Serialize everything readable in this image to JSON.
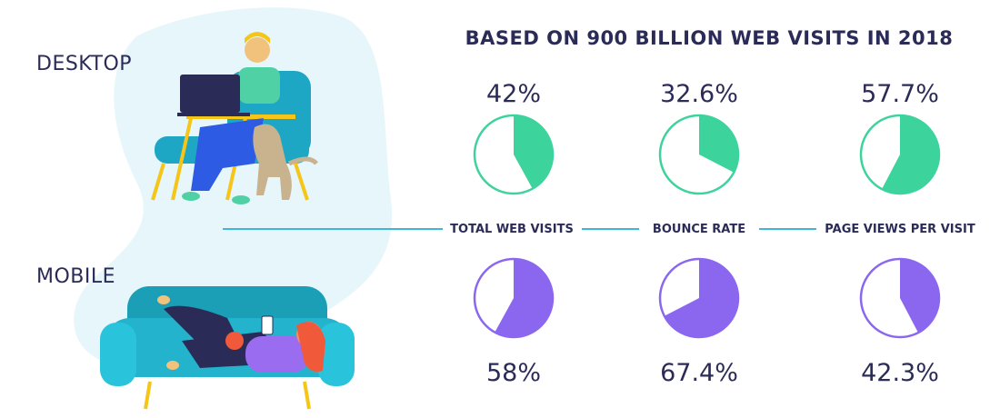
{
  "title": "BASED ON 900 BILLION WEB VISITS IN 2018",
  "labels": {
    "desktop": "DESKTOP",
    "mobile": "MOBILE"
  },
  "colors": {
    "desktop": "#3dd39c",
    "mobile": "#8b67f0",
    "line": "#3fb7d9",
    "text": "#2b2b57"
  },
  "chart_data": {
    "type": "pie",
    "title": "BASED ON 900 BILLION WEB VISITS IN 2018",
    "categories": [
      "TOTAL WEB VISITS",
      "BOUNCE RATE",
      "PAGE VIEWS PER VISIT"
    ],
    "series": [
      {
        "name": "DESKTOP",
        "values": [
          42,
          32.6,
          57.7
        ],
        "labels": [
          "42%",
          "32.6%",
          "57.7%"
        ]
      },
      {
        "name": "MOBILE",
        "values": [
          58,
          67.4,
          42.3
        ],
        "labels": [
          "58%",
          "67.4%",
          "42.3%"
        ]
      }
    ]
  }
}
